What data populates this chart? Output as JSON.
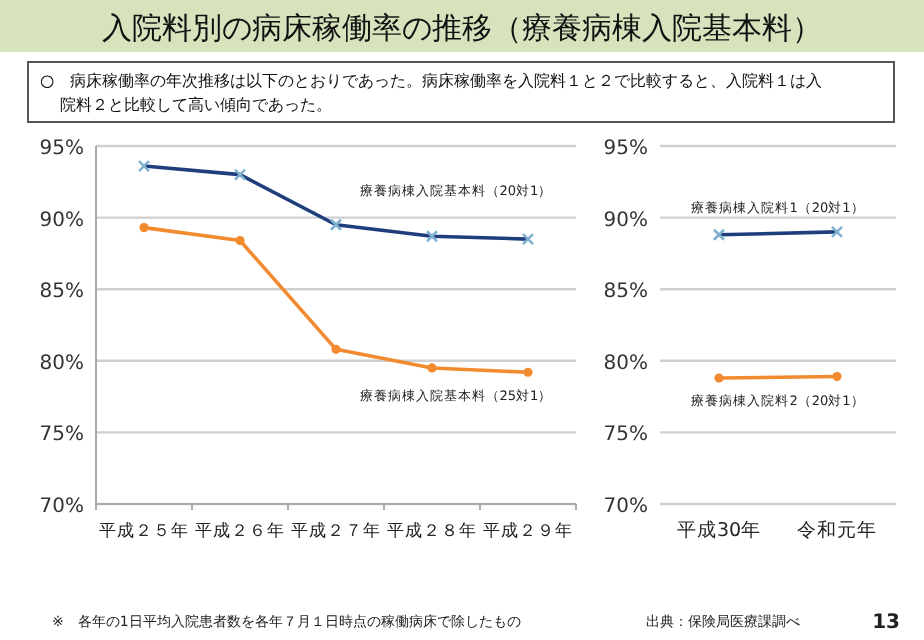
{
  "chart_data": [
    {
      "type": "line",
      "title": "入院料別の病床稼働率の推移（療養病棟入院基本料）",
      "subtitle": "○　病床稼働率の年次推移は以下のとおりであった。病床稼働率を入院料１と２で比較すると、入院料１は入院料２と比較して高い傾向であった。",
      "categories": [
        "平成２５年",
        "平成２６年",
        "平成２７年",
        "平成２８年",
        "平成２９年"
      ],
      "series": [
        {
          "name": "療養病棟入院基本料（20対1）",
          "color": "#1f3e7c",
          "marker": "cross",
          "values": [
            93.6,
            93.0,
            89.5,
            88.7,
            88.5
          ]
        },
        {
          "name": "療養病棟入院基本料（25対1）",
          "color": "#f28a30",
          "marker": "circle",
          "values": [
            89.3,
            88.4,
            80.8,
            79.5,
            79.2
          ]
        }
      ],
      "ylim": [
        70,
        95
      ],
      "yticks": [
        {
          "value": 70,
          "label": "70%"
        },
        {
          "value": 75,
          "label": "75%"
        },
        {
          "value": 80,
          "label": "80%"
        },
        {
          "value": 85,
          "label": "85%"
        },
        {
          "value": 90,
          "label": "90%"
        },
        {
          "value": 95,
          "label": "95%"
        }
      ],
      "grid": "y",
      "annotations": [
        "※　各年の1日平均入院患者数を各年７月１日時点の稼働病床で除したもの",
        "出典：保険局医療課調べ",
        "13"
      ]
    },
    {
      "type": "line",
      "categories": [
        "平成30年",
        "令和元年"
      ],
      "series": [
        {
          "name": "療養病棟入院料1（20対1）",
          "color": "#1f3e7c",
          "marker": "cross",
          "values": [
            88.8,
            89.0
          ]
        },
        {
          "name": "療養病棟入院料2（20対1）",
          "color": "#f28a30",
          "marker": "circle",
          "values": [
            78.8,
            78.9
          ]
        }
      ],
      "ylim": [
        70,
        95
      ],
      "yticks": [
        {
          "value": 70,
          "label": "70%"
        },
        {
          "value": 75,
          "label": "75%"
        },
        {
          "value": 80,
          "label": "80%"
        },
        {
          "value": 85,
          "label": "85%"
        },
        {
          "value": 90,
          "label": "90%"
        },
        {
          "value": 95,
          "label": "95%"
        }
      ],
      "grid": "y"
    }
  ]
}
